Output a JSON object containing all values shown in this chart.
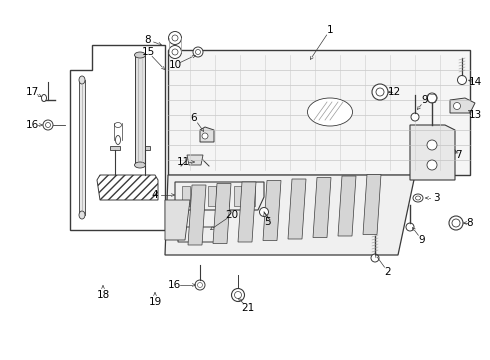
{
  "bg_color": "#ffffff",
  "fig_width": 4.9,
  "fig_height": 3.6,
  "dpi": 100,
  "line_color": "#3a3a3a",
  "light_gray": "#cccccc",
  "mid_gray": "#999999"
}
